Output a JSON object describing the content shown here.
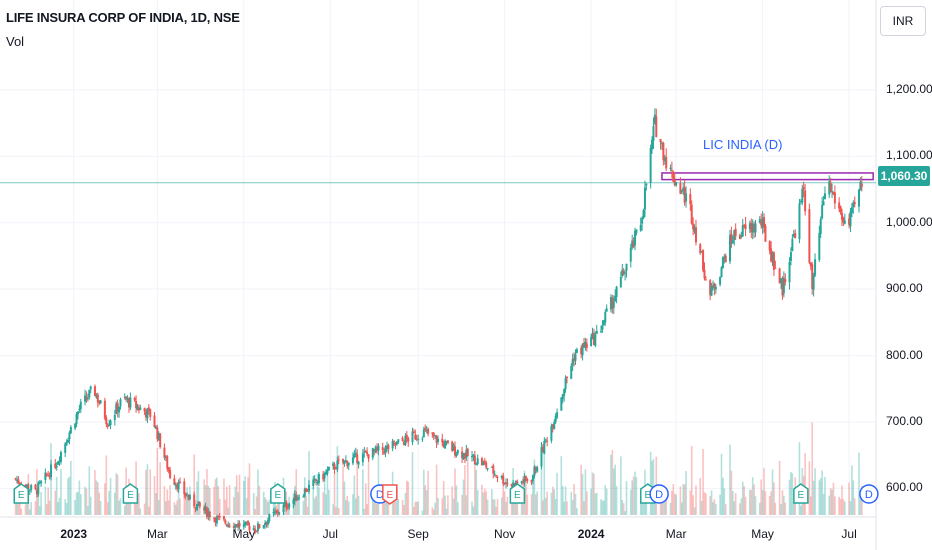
{
  "header": {
    "title": "LIFE INSURA CORP OF INDIA, 1D, NSE",
    "volume_label": "Vol",
    "currency": "INR"
  },
  "price_badge": "1,060.30",
  "annotation": "LIC INDIA (D)",
  "y_ticks": [
    "1,200.00",
    "1,100.00",
    "1,000.00",
    "900.00",
    "800.00",
    "700.00",
    "600.00"
  ],
  "x_ticks": [
    "2023",
    "Mar",
    "May",
    "Jul",
    "Sep",
    "Nov",
    "2024",
    "Mar",
    "May",
    "Jul"
  ],
  "colors": {
    "up": "#26a69a",
    "down": "#ef5350",
    "resistance_box": "#9c27b0",
    "annotation": "#2962ff",
    "last_price_line": "#26a69a",
    "dividend_marker": "#2962ff",
    "earnings_marker": "#26a69a",
    "earnings_marker_red": "#ef5350"
  },
  "chart_data": {
    "type": "candlestick",
    "title": "LIFE INSURA CORP OF INDIA, 1D, NSE",
    "x_range": [
      "2022-11",
      "2024-07"
    ],
    "ylim": [
      560,
      1230
    ],
    "last_price": 1060.3,
    "resistance_zone": [
      1065,
      1075
    ],
    "grid": true,
    "series": [
      {
        "name": "price",
        "approx_path": [
          [
            "2022-11-20",
            615
          ],
          [
            "2022-12-05",
            595
          ],
          [
            "2022-12-20",
            640
          ],
          [
            "2023-01-05",
            720
          ],
          [
            "2023-01-15",
            750
          ],
          [
            "2023-01-25",
            700
          ],
          [
            "2023-02-05",
            735
          ],
          [
            "2023-02-25",
            710
          ],
          [
            "2023-03-10",
            620
          ],
          [
            "2023-03-25",
            580
          ],
          [
            "2023-04-15",
            550
          ],
          [
            "2023-05-10",
            540
          ],
          [
            "2023-06-15",
            600
          ],
          [
            "2023-07-05",
            635
          ],
          [
            "2023-07-25",
            650
          ],
          [
            "2023-08-10",
            660
          ],
          [
            "2023-08-25",
            675
          ],
          [
            "2023-09-05",
            685
          ],
          [
            "2023-09-25",
            660
          ],
          [
            "2023-10-15",
            640
          ],
          [
            "2023-11-05",
            605
          ],
          [
            "2023-11-20",
            615
          ],
          [
            "2023-12-05",
            700
          ],
          [
            "2023-12-20",
            800
          ],
          [
            "2024-01-05",
            830
          ],
          [
            "2024-01-20",
            900
          ],
          [
            "2024-02-05",
            1000
          ],
          [
            "2024-02-15",
            1150
          ],
          [
            "2024-02-25",
            1080
          ],
          [
            "2024-03-10",
            1030
          ],
          [
            "2024-03-25",
            890
          ],
          [
            "2024-04-10",
            980
          ],
          [
            "2024-04-30",
            1000
          ],
          [
            "2024-05-15",
            900
          ],
          [
            "2024-05-30",
            1050
          ],
          [
            "2024-06-05",
            900
          ],
          [
            "2024-06-15",
            1065
          ],
          [
            "2024-06-30",
            990
          ],
          [
            "2024-07-10",
            1060
          ]
        ]
      }
    ],
    "events": [
      {
        "type": "E",
        "date": "2022-11-25"
      },
      {
        "type": "E",
        "date": "2023-02-10"
      },
      {
        "type": "E",
        "date": "2023-05-25"
      },
      {
        "type": "D",
        "date": "2023-08-05"
      },
      {
        "type": "E",
        "date": "2023-08-12",
        "negative": true
      },
      {
        "type": "E",
        "date": "2023-11-10"
      },
      {
        "type": "E",
        "date": "2024-02-10"
      },
      {
        "type": "D",
        "date": "2024-02-18"
      },
      {
        "type": "E",
        "date": "2024-05-28"
      },
      {
        "type": "D",
        "date": "2024-07-15"
      }
    ]
  }
}
